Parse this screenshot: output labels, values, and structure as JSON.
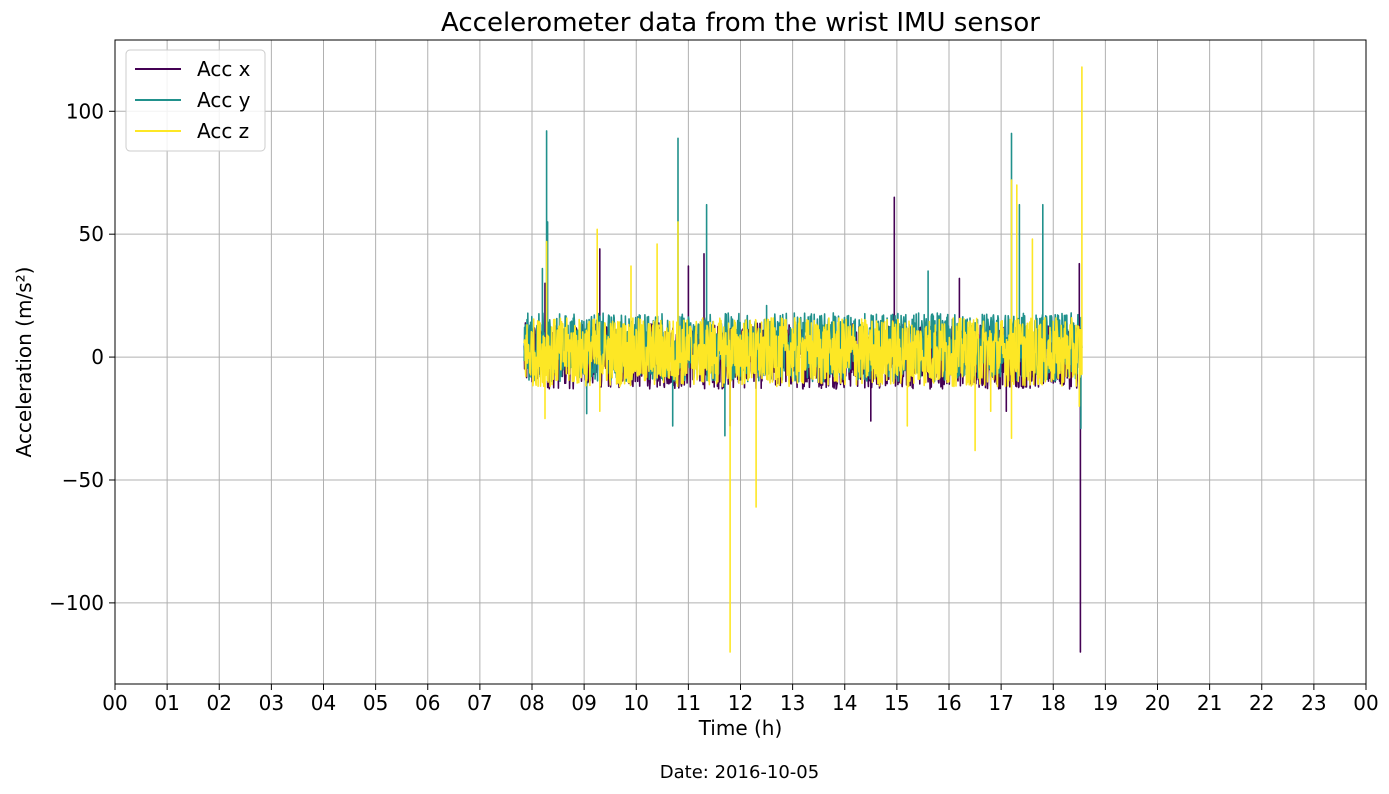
{
  "chart_data": {
    "type": "line",
    "title": "Accelerometer data from the wrist IMU sensor",
    "xlabel": "Time (h)",
    "ylabel": "Acceleration (m/s²)",
    "xlim": [
      0,
      24
    ],
    "ylim": [
      -133,
      129
    ],
    "x_ticks": [
      0,
      1,
      2,
      3,
      4,
      5,
      6,
      7,
      8,
      9,
      10,
      11,
      12,
      13,
      14,
      15,
      16,
      17,
      18,
      19,
      20,
      21,
      22,
      23,
      24
    ],
    "x_tick_labels": [
      "00",
      "01",
      "02",
      "03",
      "04",
      "05",
      "06",
      "07",
      "08",
      "09",
      "10",
      "11",
      "12",
      "13",
      "14",
      "15",
      "16",
      "17",
      "18",
      "19",
      "20",
      "21",
      "22",
      "23",
      "00"
    ],
    "y_ticks": [
      100,
      50,
      0,
      -50,
      -100
    ],
    "y_tick_labels": [
      "100",
      "50",
      "0",
      "−50",
      "−100"
    ],
    "grid": true,
    "legend_position": "top-left",
    "data_range_hours": [
      7.85,
      18.55
    ],
    "series": [
      {
        "name": "Acc x",
        "color": "#440154",
        "band": [
          -13,
          14
        ],
        "spikes": [
          [
            8.25,
            30
          ],
          [
            9.3,
            44
          ],
          [
            11.0,
            37
          ],
          [
            11.3,
            42
          ],
          [
            11.8,
            -28
          ],
          [
            14.5,
            -26
          ],
          [
            14.95,
            65
          ],
          [
            16.2,
            32
          ],
          [
            17.1,
            -22
          ],
          [
            18.52,
            -120
          ],
          [
            18.5,
            38
          ]
        ]
      },
      {
        "name": "Acc y",
        "color": "#21918c",
        "band": [
          -10,
          18
        ],
        "spikes": [
          [
            8.2,
            36
          ],
          [
            8.28,
            92
          ],
          [
            8.3,
            55
          ],
          [
            9.05,
            -23
          ],
          [
            10.8,
            89
          ],
          [
            10.7,
            -28
          ],
          [
            11.35,
            62
          ],
          [
            11.7,
            -32
          ],
          [
            12.5,
            21
          ],
          [
            15.6,
            35
          ],
          [
            17.2,
            91
          ],
          [
            17.35,
            62
          ],
          [
            17.8,
            62
          ],
          [
            18.53,
            -29
          ]
        ]
      },
      {
        "name": "Acc z",
        "color": "#fde725",
        "band": [
          -12,
          16
        ],
        "spikes": [
          [
            8.28,
            47
          ],
          [
            8.25,
            -25
          ],
          [
            9.25,
            52
          ],
          [
            9.3,
            -22
          ],
          [
            9.9,
            37
          ],
          [
            10.4,
            46
          ],
          [
            10.8,
            55
          ],
          [
            11.8,
            -120
          ],
          [
            12.3,
            -61
          ],
          [
            15.2,
            -28
          ],
          [
            16.5,
            -38
          ],
          [
            16.8,
            -22
          ],
          [
            17.2,
            72
          ],
          [
            17.3,
            70
          ],
          [
            17.6,
            48
          ],
          [
            17.2,
            -33
          ],
          [
            18.55,
            118
          ],
          [
            18.5,
            -20
          ]
        ]
      }
    ]
  },
  "footer": {
    "date_text": "Date: 2016-10-05"
  }
}
